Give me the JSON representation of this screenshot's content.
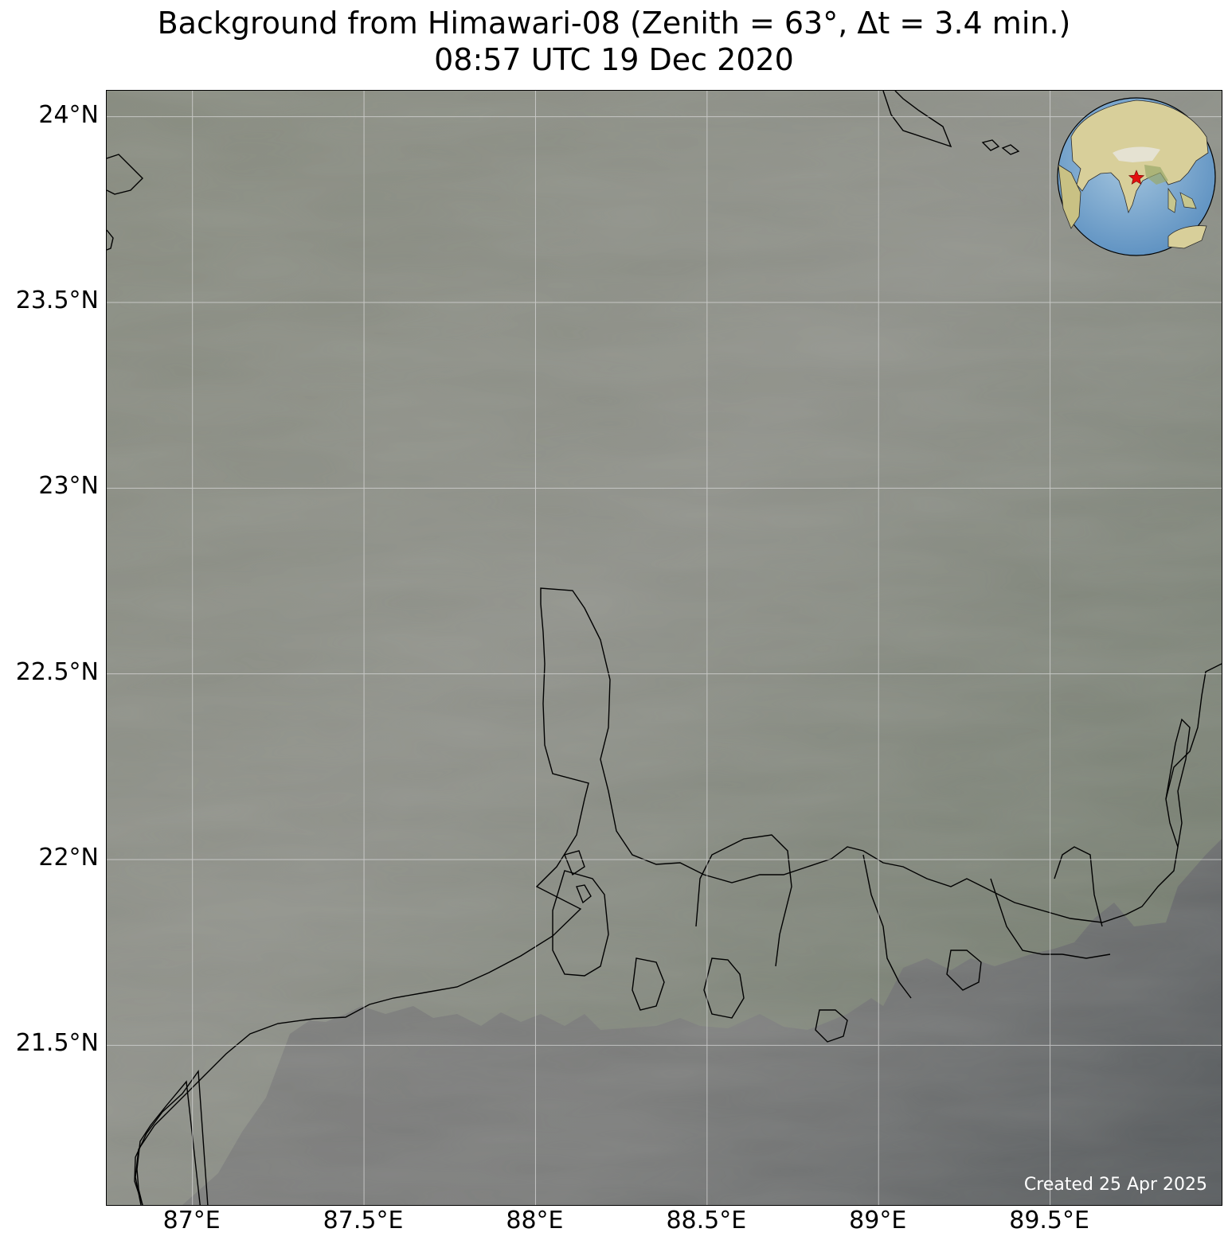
{
  "title": {
    "line1": "Background from Himawari-08 (Zenith = 63°, Δt =  3.4 min.)",
    "line2": "08:57 UTC 19 Dec 2020"
  },
  "credit": "Created 25 Apr 2025",
  "axes": {
    "lon_range": [
      86.75,
      90.0
    ],
    "lat_range": [
      21.07,
      24.07
    ],
    "lon_ticks": [
      {
        "value": 87.0,
        "label": "87°E"
      },
      {
        "value": 87.5,
        "label": "87.5°E"
      },
      {
        "value": 88.0,
        "label": "88°E"
      },
      {
        "value": 88.5,
        "label": "88.5°E"
      },
      {
        "value": 89.0,
        "label": "89°E"
      },
      {
        "value": 89.5,
        "label": "89.5°E"
      }
    ],
    "lat_ticks": [
      {
        "value": 24.0,
        "label": "24°N"
      },
      {
        "value": 23.5,
        "label": "23.5°N"
      },
      {
        "value": 23.0,
        "label": "23°N"
      },
      {
        "value": 22.5,
        "label": "22.5°N"
      },
      {
        "value": 22.0,
        "label": "22°N"
      },
      {
        "value": 21.5,
        "label": "21.5°N"
      }
    ],
    "grid": true
  },
  "colors": {
    "land_haze": "#8c8e84",
    "land_green": "#6f7a68",
    "sea": "#7f7f7e",
    "sea_dark": "#5a5e60",
    "grid": "#d9d9d9",
    "coastline": "#000000",
    "marker": "#e3100f"
  },
  "inset": {
    "type": "globe",
    "marker": "star",
    "marker_lon": 88.3,
    "marker_lat": 22.6
  }
}
